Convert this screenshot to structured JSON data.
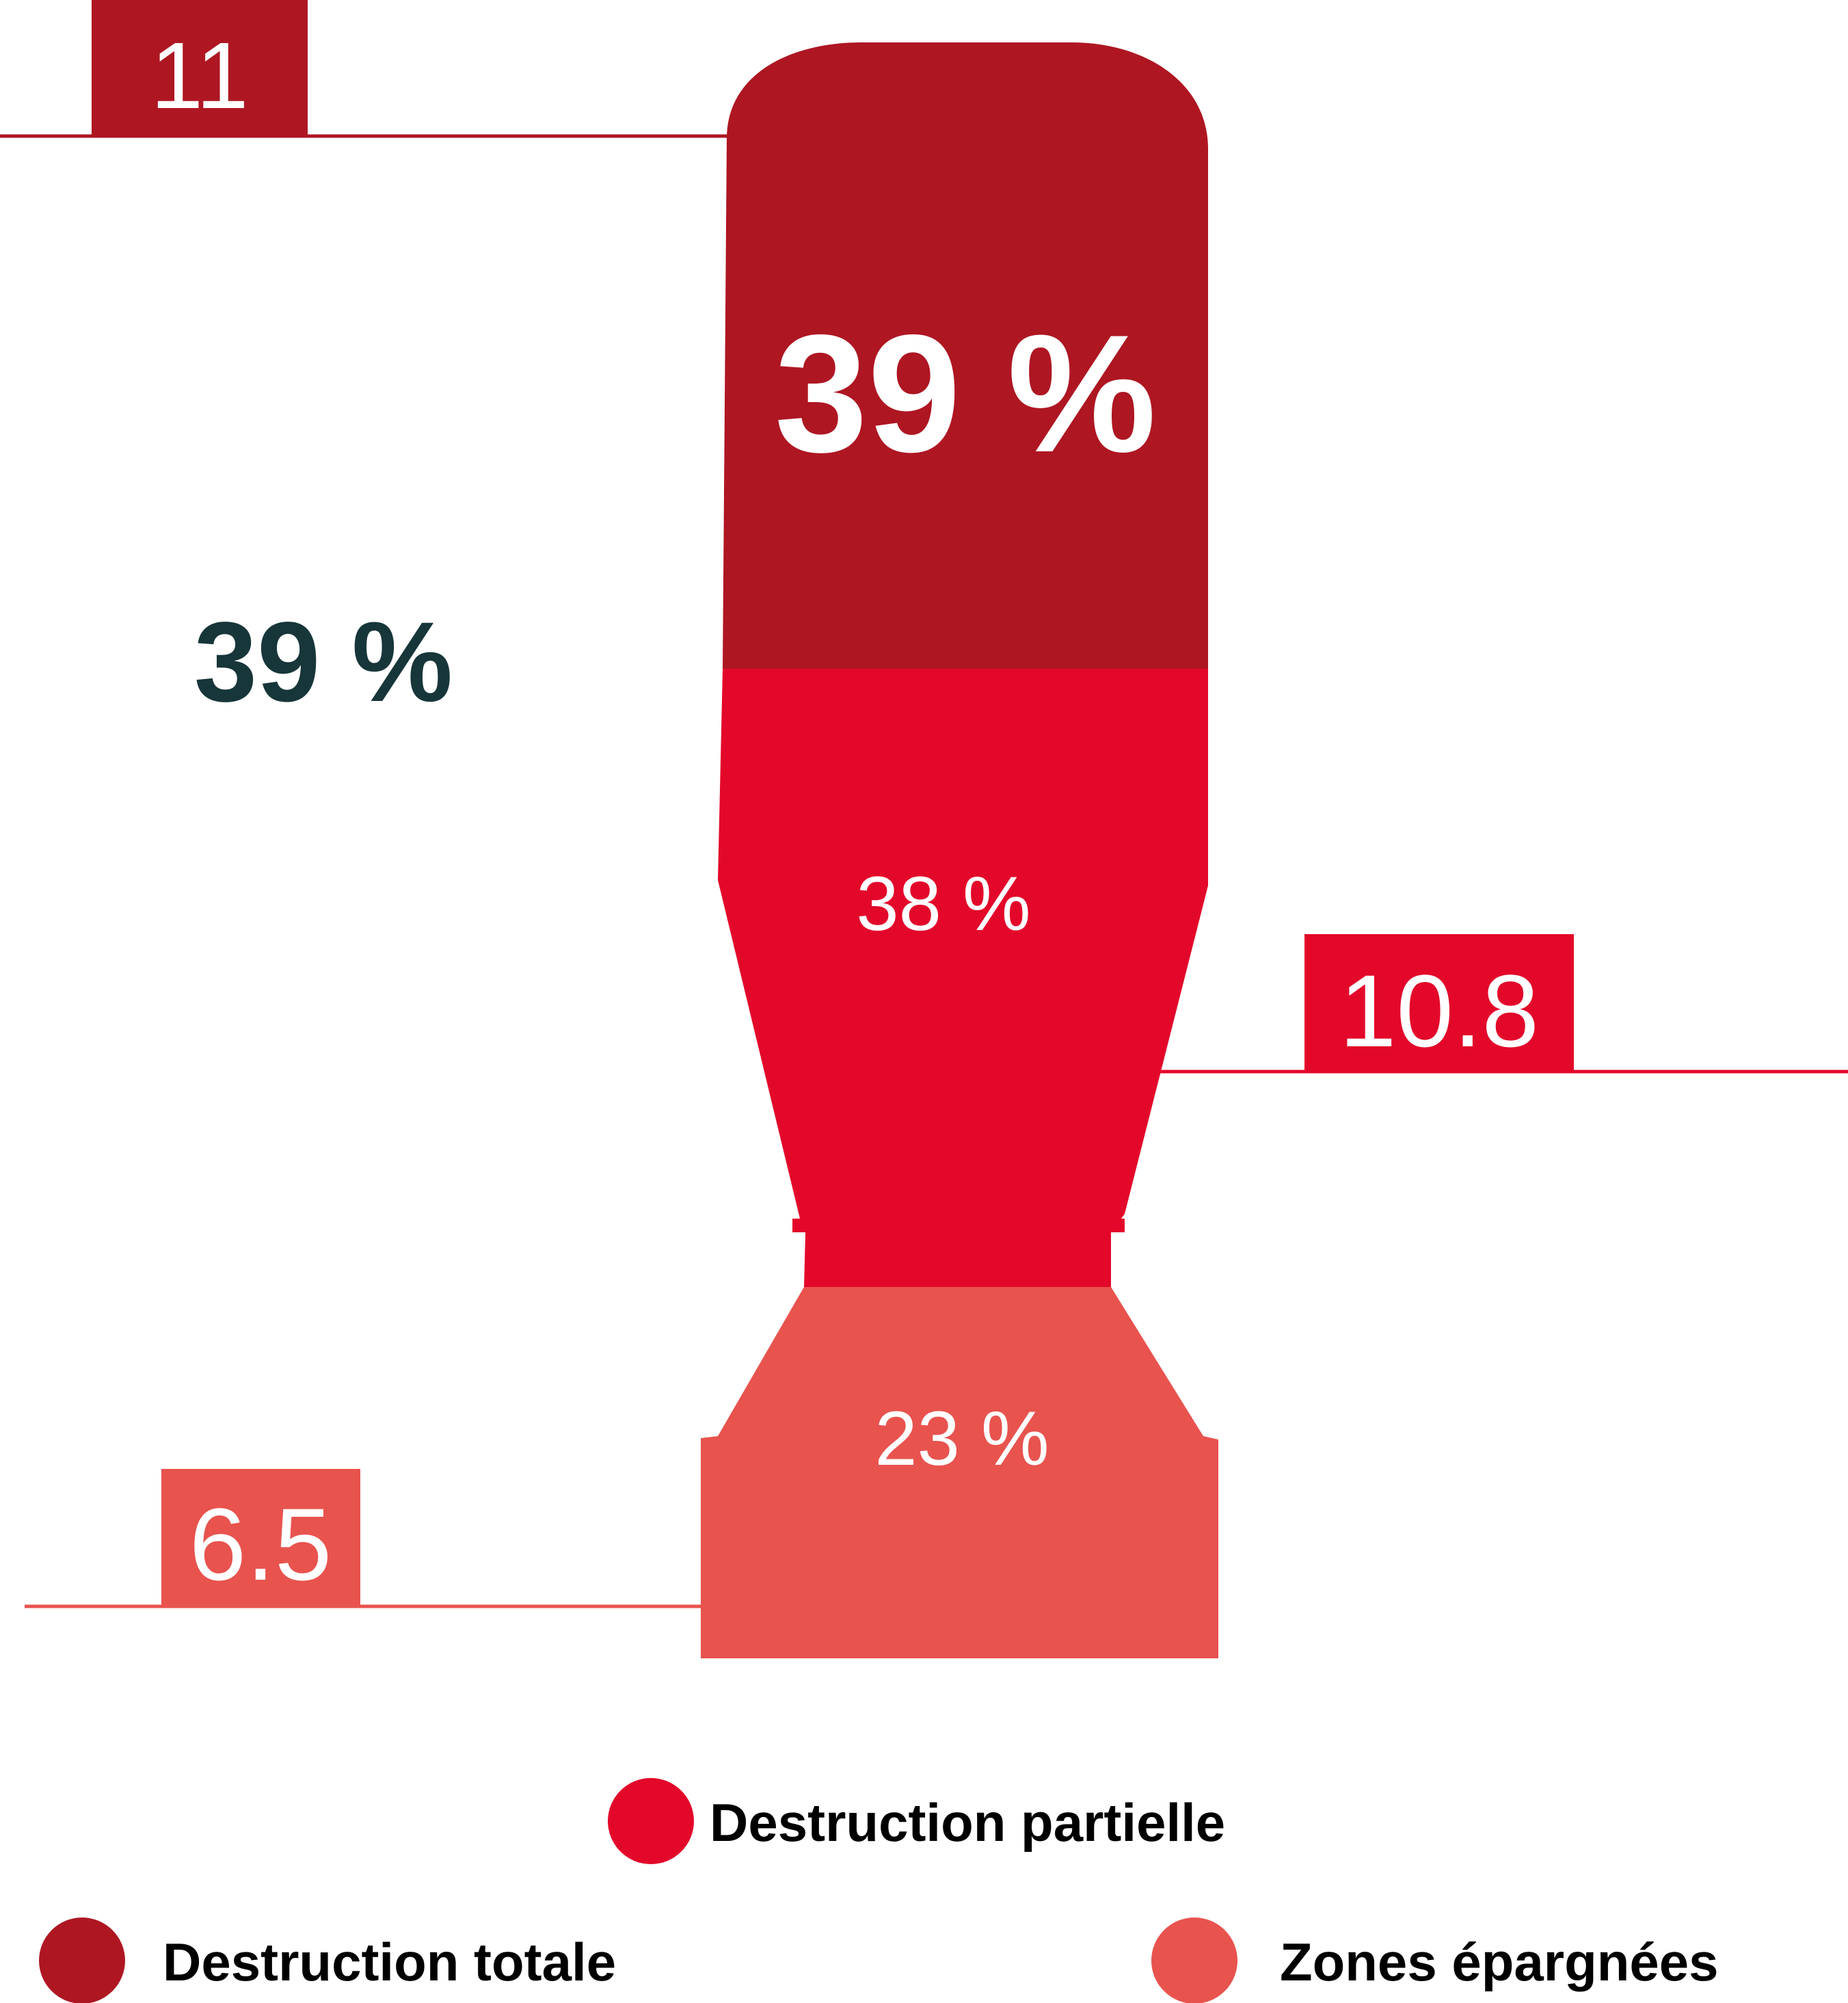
{
  "chart_data": {
    "type": "bar",
    "categories": [
      "Destruction totale",
      "Destruction partielle",
      "Zones épargnées"
    ],
    "series": [
      {
        "name": "",
        "values": [
          11,
          10.8,
          6.5
        ],
        "value_labels": [
          "11",
          "10.8",
          "6.5"
        ],
        "share_labels": [
          "39 %",
          "38 %",
          "23 %"
        ]
      }
    ],
    "highlight_label": "39 %",
    "legend": [
      {
        "label": "Destruction partielle",
        "color": "#e3082a"
      },
      {
        "label": "Destruction totale",
        "color": "#ae1622"
      },
      {
        "label": "Zones épargnées",
        "color": "#e8534e"
      }
    ],
    "legend_placement": "bottom",
    "title": "",
    "xlabel": "",
    "ylabel": "",
    "grid": false
  },
  "colors": {
    "totale": "#ae1622",
    "partielle": "#e3082a",
    "epargnees": "#e8534e",
    "highlight_text": "#17363a",
    "background": "#ffffff"
  }
}
